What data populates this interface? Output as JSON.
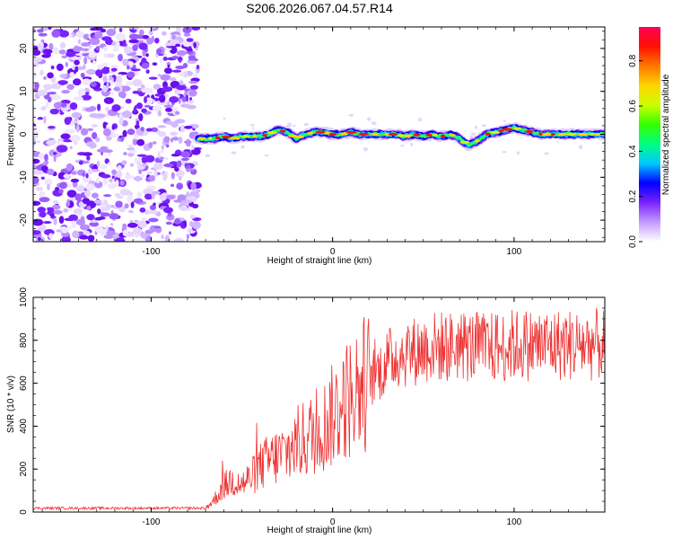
{
  "title": "S206.2026.067.04.57.R14",
  "chart_data": [
    {
      "type": "heatmap",
      "name": "spectrogram",
      "xlabel": "Height of straight line (km)",
      "ylabel": "Frequency (Hz)",
      "xlim": [
        -165,
        150
      ],
      "ylim": [
        -25,
        25
      ],
      "xticks": [
        -100,
        0,
        100
      ],
      "yticks": [
        -20,
        -10,
        0,
        10,
        20
      ],
      "noise_region_x": [
        -165,
        -74
      ],
      "signal_trace": {
        "x": [
          -74,
          -70,
          -65,
          -60,
          -55,
          -50,
          -45,
          -40,
          -35,
          -30,
          -25,
          -20,
          -15,
          -10,
          -5,
          0,
          5,
          10,
          15,
          20,
          25,
          30,
          35,
          40,
          45,
          50,
          55,
          60,
          65,
          70,
          75,
          80,
          85,
          90,
          95,
          100,
          105,
          110,
          115,
          120,
          125,
          130,
          135,
          140,
          145,
          150
        ],
        "y": [
          -1,
          -1,
          -1,
          -0.5,
          -1,
          -0.5,
          -0.5,
          -0.5,
          0,
          1,
          0.5,
          -1,
          0,
          0.5,
          0.5,
          0,
          0,
          0.5,
          0,
          0,
          0,
          0,
          0,
          -0.5,
          0,
          -0.5,
          0,
          -0.5,
          0,
          -1,
          -2.5,
          -1.5,
          0,
          0.5,
          1,
          1.5,
          1,
          0.5,
          0,
          0,
          0,
          0,
          0,
          0,
          0,
          0
        ]
      },
      "colorbar": {
        "label": "Normalized spectral amplitude",
        "range": [
          0,
          0.95
        ],
        "ticks": [
          "0.0",
          "0.2",
          "0.4",
          "0.6",
          "0.8"
        ],
        "colors": [
          "#ffffff",
          "#c49bff",
          "#7a22ff",
          "#0000ff",
          "#00c8ff",
          "#00ff80",
          "#33ff00",
          "#ccff00",
          "#ffd500",
          "#ff7700",
          "#ff1100",
          "#ff0055"
        ]
      }
    },
    {
      "type": "line",
      "name": "snr",
      "xlabel": "Height of straight line (km)",
      "ylabel": "SNR (10 * v/v)",
      "xlim": [
        -165,
        150
      ],
      "ylim": [
        0,
        1000
      ],
      "xticks": [
        -100,
        0,
        100
      ],
      "yticks": [
        0,
        200,
        400,
        600,
        800,
        1000
      ],
      "color": "#ee3333",
      "series": [
        {
          "name": "SNR",
          "x": [
            -165,
            -150,
            -135,
            -120,
            -105,
            -90,
            -80,
            -70,
            -65,
            -60,
            -55,
            -50,
            -45,
            -40,
            -35,
            -30,
            -25,
            -20,
            -15,
            -10,
            -5,
            0,
            5,
            10,
            15,
            20,
            25,
            30,
            35,
            40,
            45,
            50,
            55,
            60,
            65,
            70,
            75,
            80,
            85,
            90,
            95,
            100,
            105,
            110,
            115,
            120,
            125,
            130,
            135,
            140,
            145,
            150
          ],
          "values": [
            18,
            18,
            18,
            18,
            18,
            18,
            18,
            18,
            60,
            120,
            150,
            130,
            160,
            210,
            240,
            260,
            280,
            320,
            340,
            370,
            400,
            450,
            500,
            540,
            580,
            620,
            650,
            700,
            730,
            740,
            750,
            760,
            770,
            770,
            770,
            780,
            770,
            770,
            760,
            770,
            770,
            780,
            780,
            780,
            780,
            780,
            780,
            780,
            780,
            780,
            780,
            780
          ]
        }
      ]
    }
  ]
}
